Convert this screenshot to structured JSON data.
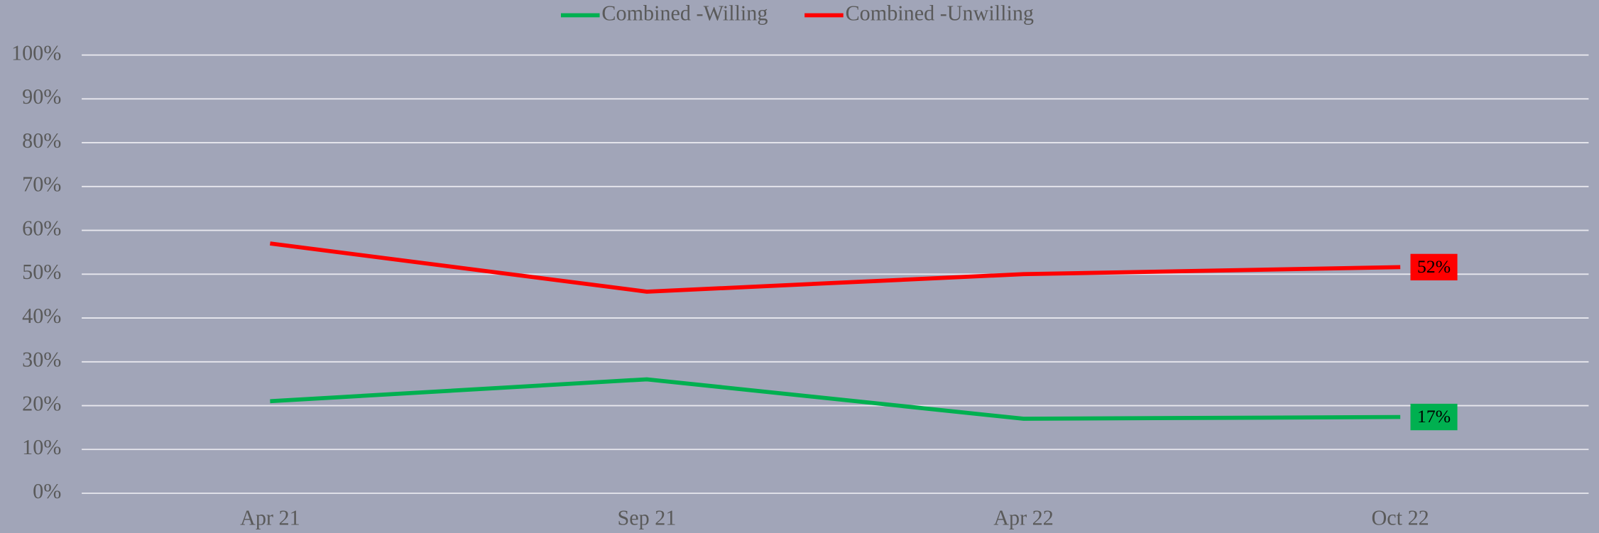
{
  "chart_data": {
    "type": "line",
    "categories": [
      "Apr 21",
      "Sep 21",
      "Apr 22",
      "Oct 22"
    ],
    "series": [
      {
        "name": "Combined -Willing",
        "color": "#00b050",
        "values": [
          21,
          26,
          17,
          17.4
        ],
        "value_labels": [
          null,
          null,
          null,
          "17%"
        ]
      },
      {
        "name": "Combined -Unwilling",
        "color": "#ff0000",
        "values": [
          57,
          46,
          50,
          51.6
        ],
        "value_labels": [
          null,
          null,
          null,
          "52%"
        ]
      }
    ],
    "ylim": [
      0,
      100
    ],
    "yticks": [
      {
        "value": 0,
        "label": "0%"
      },
      {
        "value": 10,
        "label": "10%"
      },
      {
        "value": 20,
        "label": "20%"
      },
      {
        "value": 30,
        "label": "30%"
      },
      {
        "value": 40,
        "label": "40%"
      },
      {
        "value": 50,
        "label": "50%"
      },
      {
        "value": 60,
        "label": "60%"
      },
      {
        "value": 70,
        "label": "70%"
      },
      {
        "value": 80,
        "label": "80%"
      },
      {
        "value": 90,
        "label": "90%"
      },
      {
        "value": 100,
        "label": "100%"
      }
    ],
    "grid": true,
    "legend": "top"
  }
}
